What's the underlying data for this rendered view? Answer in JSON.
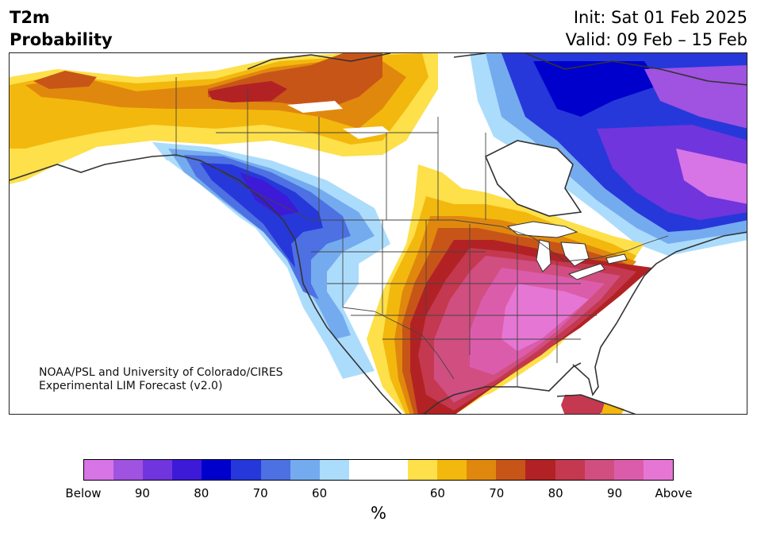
{
  "title": {
    "variable": "T2m",
    "product": "Probability",
    "init": "Init: Sat 01 Feb 2025",
    "valid": "Valid: 09 Feb – 15 Feb"
  },
  "credit": {
    "line1": "NOAA/PSL and University of Colorado/CIRES",
    "line2": "Experimental LIM Forecast (v2.0)"
  },
  "colorbar": {
    "unit": "%",
    "colors": [
      "#d774e6",
      "#a052e0",
      "#7035dc",
      "#3d1ad8",
      "#0000cc",
      "#2638da",
      "#4d70e3",
      "#74abef",
      "#acdcfc",
      "#ffffff",
      "#ffffff",
      "#fde04a",
      "#f3b80d",
      "#e0880e",
      "#c85518",
      "#b22224",
      "#c43850",
      "#d14e80",
      "#dc5cac",
      "#e676d4"
    ],
    "ticks": [
      {
        "label": "Below"
      },
      {
        "label": "90"
      },
      {
        "label": "80"
      },
      {
        "label": "70"
      },
      {
        "label": "60"
      },
      {
        "label": "60"
      },
      {
        "label": "70"
      },
      {
        "label": "80"
      },
      {
        "label": "90"
      },
      {
        "label": "Above"
      }
    ]
  },
  "map": {
    "region": "North America",
    "colors": {
      "below_light": "#acdcfc",
      "below_60": "#74abef",
      "below_70": "#4d70e3",
      "below_75": "#2638da",
      "below_80": "#0000cc",
      "below_85": "#3d1ad8",
      "below_90": "#7035dc",
      "below_95": "#a052e0",
      "below_ext": "#d774e6",
      "above_light": "#fde04a",
      "above_60": "#f3b80d",
      "above_65": "#e0880e",
      "above_70": "#c85518",
      "above_75": "#b22224",
      "above_80": "#c43850",
      "above_85": "#d14e80",
      "above_90": "#dc5cac",
      "above_ext": "#e676d4",
      "coast": "#333333"
    }
  }
}
